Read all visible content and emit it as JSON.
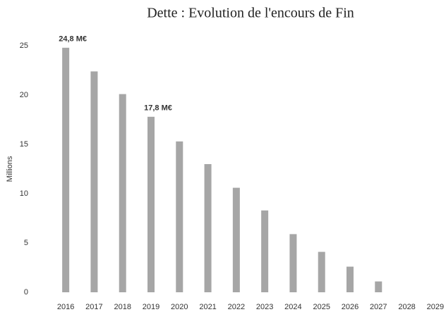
{
  "chart_data": {
    "type": "bar",
    "title": "Dette : Evolution de l'encours de Fin",
    "y_label": "Millions",
    "categories": [
      "2016",
      "2017",
      "2018",
      "2019",
      "2020",
      "2021",
      "2022",
      "2023",
      "2024",
      "2025",
      "2026",
      "2027",
      "2028",
      "2029"
    ],
    "values": [
      24.8,
      22.4,
      20.1,
      17.8,
      15.3,
      13.0,
      10.6,
      8.3,
      5.9,
      4.1,
      2.6,
      1.1,
      0,
      0
    ],
    "value_labels": [
      "24,8 M€",
      null,
      null,
      "17,8 M€",
      null,
      null,
      null,
      null,
      null,
      null,
      null,
      null,
      null,
      null
    ],
    "color": "#a6a6a6",
    "ylim": [
      0,
      25
    ],
    "yticks": [
      0,
      5,
      10,
      15,
      20,
      25
    ],
    "grid": false
  }
}
